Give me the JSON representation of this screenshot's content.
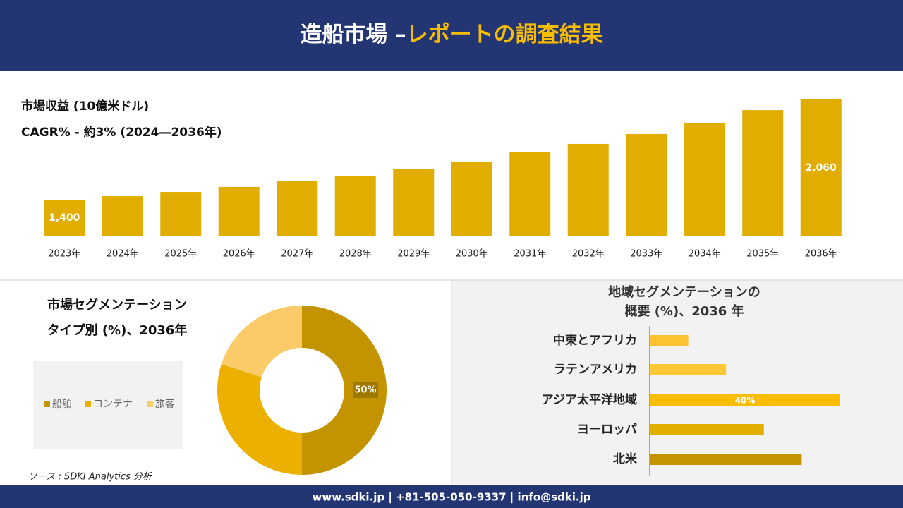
{
  "header": {
    "title_part1": "造船市場 –",
    "title_part2": "レポートの調査結果"
  },
  "chart_data": [
    {
      "type": "bar",
      "title": "市場収益 (10億米ドル)",
      "subtitle": "CAGR% - 約3% (2024―2036年)",
      "categories": [
        "2023年",
        "2024年",
        "2025年",
        "2026年",
        "2027年",
        "2028年",
        "2029年",
        "2030年",
        "2031年",
        "2032年",
        "2033年",
        "2034年",
        "2035年",
        "2036年"
      ],
      "values": [
        1400,
        1424,
        1452,
        1485,
        1522,
        1559,
        1605,
        1652,
        1712,
        1768,
        1833,
        1907,
        1990,
        2060
      ],
      "value_labels": [
        "1,400",
        null,
        null,
        null,
        null,
        null,
        null,
        null,
        null,
        null,
        null,
        null,
        null,
        "2,060"
      ],
      "color": "#e0ad00",
      "ylim": [
        1160,
        2060
      ]
    },
    {
      "type": "donut",
      "title": "市場セグメンテーション",
      "subtitle": "タイプ別 (%)、2036年",
      "categories": [
        "船舶",
        "コンテナ",
        "旅客"
      ],
      "values": [
        50,
        30,
        20
      ],
      "value_labels": [
        "50%",
        null,
        null
      ],
      "colors": [
        "#c49400",
        "#ecb000",
        "#fbcb6a"
      ]
    },
    {
      "type": "hbar",
      "title": "地域セグメンテーションの",
      "subtitle": "概要 (%)、2036 年",
      "categories": [
        "中東とアフリカ",
        "ラテンアメリカ",
        "アジア太平洋地域",
        "ヨーロッパ",
        "北米"
      ],
      "values": [
        8,
        16,
        40,
        24,
        32
      ],
      "value_labels": [
        null,
        null,
        "40%",
        null,
        null
      ],
      "colors": [
        "#fcc232",
        "#fdc835",
        "#f9bd00",
        "#e2ae00",
        "#c49400"
      ],
      "xlim": [
        0,
        40
      ]
    }
  ],
  "source": "ソース : SDKI Analytics 分析",
  "footer": "www.sdki.jp | +81-505-050-9337 | info@sdki.jp"
}
